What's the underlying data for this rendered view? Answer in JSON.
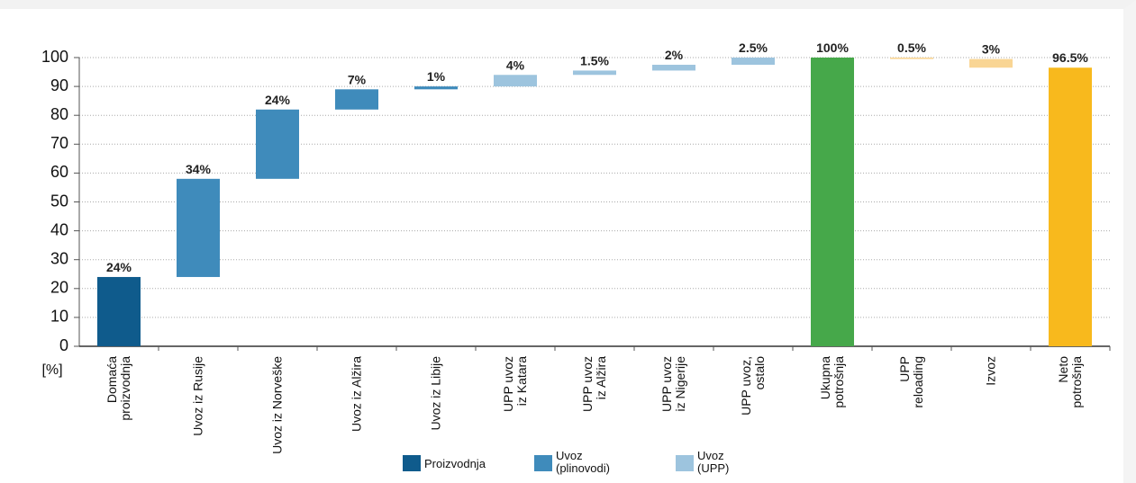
{
  "chart_data": {
    "type": "waterfall",
    "categories": [
      "Domaća\nproizvodnja",
      "Uvoz iz Rusije",
      "Uvoz iz Norveške",
      "Uvoz iz Alžira",
      "Uvoz iz Libije",
      "UPP uvoz\niz Katara",
      "UPP uvoz\niz Alžira",
      "UPP uvoz\niz Nigerije",
      "UPP uvoz,\nostalo",
      "Ukupna\npotrošnja",
      "UPP\nreloading",
      "Izvoz",
      "Neto\npotrošnja"
    ],
    "values": [
      24,
      34,
      24,
      7,
      1,
      4,
      1.5,
      2,
      2.5,
      100,
      0.5,
      3,
      96.5
    ],
    "value_labels": [
      "24%",
      "34%",
      "24%",
      "7%",
      "1%",
      "4%",
      "1.5%",
      "2%",
      "2.5%",
      "100%",
      "0.5%",
      "3%",
      "96.5%"
    ],
    "bar_kinds": [
      "increase",
      "increase",
      "increase",
      "increase",
      "increase",
      "increase",
      "increase",
      "increase",
      "increase",
      "total",
      "decrease",
      "decrease",
      "total"
    ],
    "colors": [
      "#0f5b8c",
      "#3f8bbb",
      "#3f8bbb",
      "#3f8bbb",
      "#3f8bbb",
      "#9dc4de",
      "#9dc4de",
      "#9dc4de",
      "#9dc4de",
      "#46a84a",
      "#f9d594",
      "#f9d594",
      "#f8b91d"
    ],
    "legend": [
      {
        "name": "Proizvodnja",
        "color": "#0f5b8c"
      },
      {
        "name": "Uvoz\n(plinovodi)",
        "color": "#3f8bbb"
      },
      {
        "name": "Uvoz\n(UPP)",
        "color": "#9dc4de"
      }
    ],
    "y_label": "[%]",
    "ylim": [
      0,
      100
    ],
    "yticks": [
      0,
      10,
      20,
      30,
      40,
      50,
      60,
      70,
      80,
      90,
      100
    ],
    "grid": true
  }
}
